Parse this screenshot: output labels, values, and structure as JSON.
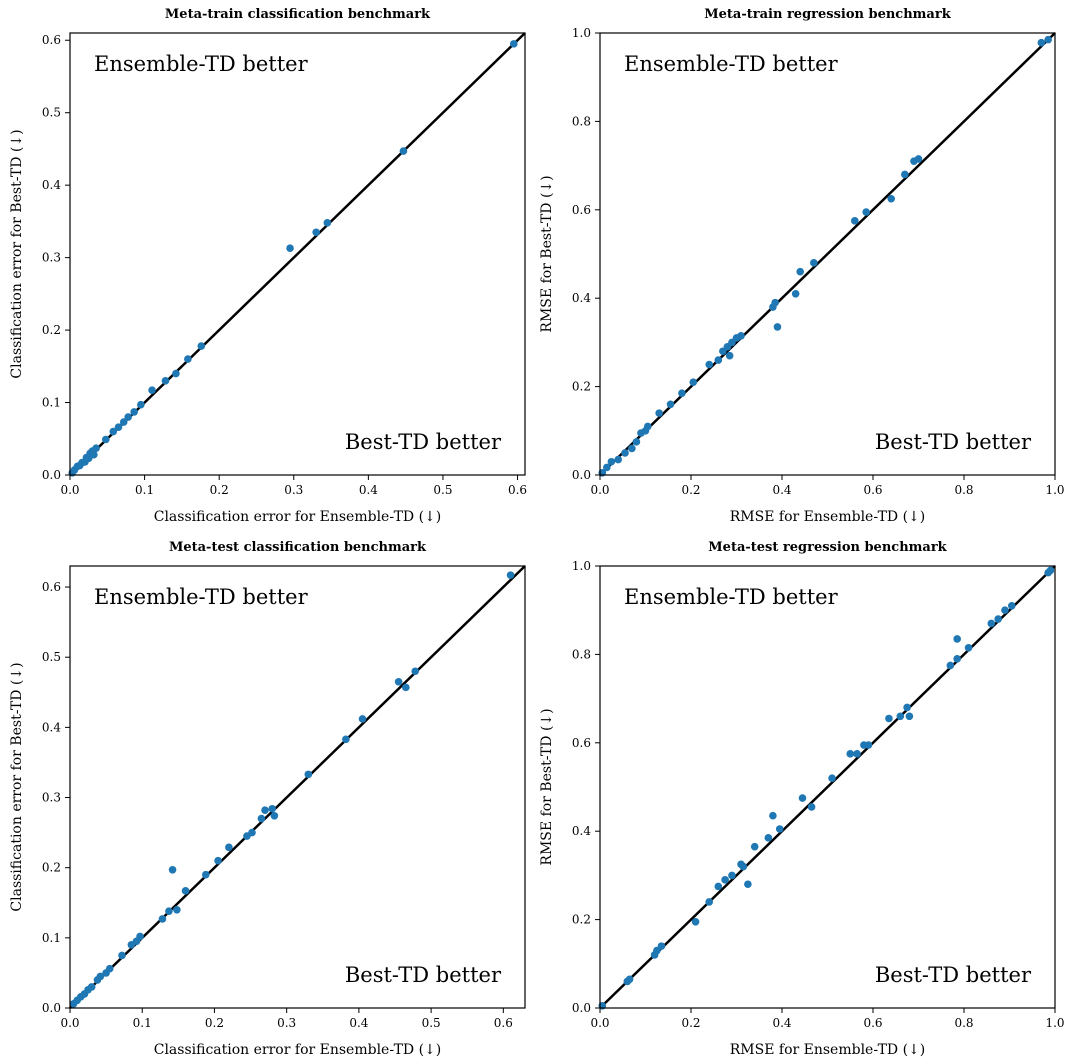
{
  "chart_data": [
    {
      "type": "scatter",
      "title": "Meta-train classification benchmark",
      "xlabel": "Classification error for Ensemble-TD (↓)",
      "ylabel": "Classification error for Best-TD (↓)",
      "xlim": [
        0,
        0.61
      ],
      "ylim": [
        0,
        0.61
      ],
      "xticks": [
        "0.0",
        "0.1",
        "0.2",
        "0.3",
        "0.4",
        "0.5",
        "0.6"
      ],
      "yticks": [
        "0.0",
        "0.1",
        "0.2",
        "0.3",
        "0.4",
        "0.5",
        "0.6"
      ],
      "xtick_values": [
        0,
        0.1,
        0.2,
        0.3,
        0.4,
        0.5,
        0.6
      ],
      "ytick_values": [
        0,
        0.1,
        0.2,
        0.3,
        0.4,
        0.5,
        0.6
      ],
      "annotations": [
        "Ensemble-TD better",
        "Best-TD better"
      ],
      "marker_color": "#1f77b4",
      "line_color": "#000000",
      "points": [
        [
          0.003,
          0.003
        ],
        [
          0.006,
          0.007
        ],
        [
          0.01,
          0.012
        ],
        [
          0.013,
          0.013
        ],
        [
          0.016,
          0.017
        ],
        [
          0.02,
          0.018
        ],
        [
          0.022,
          0.024
        ],
        [
          0.025,
          0.023
        ],
        [
          0.027,
          0.03
        ],
        [
          0.03,
          0.033
        ],
        [
          0.032,
          0.028
        ],
        [
          0.035,
          0.037
        ],
        [
          0.048,
          0.049
        ],
        [
          0.058,
          0.06
        ],
        [
          0.065,
          0.066
        ],
        [
          0.072,
          0.073
        ],
        [
          0.078,
          0.08
        ],
        [
          0.086,
          0.087
        ],
        [
          0.095,
          0.097
        ],
        [
          0.11,
          0.117
        ],
        [
          0.128,
          0.13
        ],
        [
          0.142,
          0.14
        ],
        [
          0.158,
          0.16
        ],
        [
          0.176,
          0.178
        ],
        [
          0.295,
          0.313
        ],
        [
          0.33,
          0.335
        ],
        [
          0.345,
          0.348
        ],
        [
          0.447,
          0.447
        ],
        [
          0.595,
          0.595
        ]
      ]
    },
    {
      "type": "scatter",
      "title": "Meta-train regression benchmark",
      "xlabel": "RMSE for Ensemble-TD (↓)",
      "ylabel": "RMSE for Best-TD (↓)",
      "xlim": [
        0,
        1.0
      ],
      "ylim": [
        0,
        1.0
      ],
      "xticks": [
        "0.0",
        "0.2",
        "0.4",
        "0.6",
        "0.8",
        "1.0"
      ],
      "yticks": [
        "0.0",
        "0.2",
        "0.4",
        "0.6",
        "0.8",
        "1.0"
      ],
      "xtick_values": [
        0,
        0.2,
        0.4,
        0.6,
        0.8,
        1.0
      ],
      "ytick_values": [
        0,
        0.2,
        0.4,
        0.6,
        0.8,
        1.0
      ],
      "annotations": [
        "Ensemble-TD better",
        "Best-TD better"
      ],
      "marker_color": "#1f77b4",
      "line_color": "#000000",
      "points": [
        [
          0.005,
          0.005
        ],
        [
          0.015,
          0.017
        ],
        [
          0.025,
          0.03
        ],
        [
          0.04,
          0.035
        ],
        [
          0.055,
          0.05
        ],
        [
          0.07,
          0.06
        ],
        [
          0.08,
          0.075
        ],
        [
          0.09,
          0.095
        ],
        [
          0.1,
          0.1
        ],
        [
          0.105,
          0.11
        ],
        [
          0.13,
          0.14
        ],
        [
          0.155,
          0.16
        ],
        [
          0.18,
          0.185
        ],
        [
          0.205,
          0.21
        ],
        [
          0.24,
          0.25
        ],
        [
          0.26,
          0.26
        ],
        [
          0.27,
          0.28
        ],
        [
          0.28,
          0.29
        ],
        [
          0.285,
          0.27
        ],
        [
          0.29,
          0.3
        ],
        [
          0.3,
          0.31
        ],
        [
          0.31,
          0.315
        ],
        [
          0.38,
          0.38
        ],
        [
          0.385,
          0.39
        ],
        [
          0.39,
          0.335
        ],
        [
          0.43,
          0.41
        ],
        [
          0.44,
          0.46
        ],
        [
          0.47,
          0.48
        ],
        [
          0.56,
          0.575
        ],
        [
          0.585,
          0.595
        ],
        [
          0.64,
          0.625
        ],
        [
          0.67,
          0.68
        ],
        [
          0.69,
          0.71
        ],
        [
          0.7,
          0.715
        ],
        [
          0.97,
          0.978
        ],
        [
          0.985,
          0.985
        ]
      ]
    },
    {
      "type": "scatter",
      "title": "Meta-test classification benchmark",
      "xlabel": "Classification error for Ensemble-TD (↓)",
      "ylabel": "Classification error for Best-TD (↓)",
      "xlim": [
        0,
        0.63
      ],
      "ylim": [
        0,
        0.63
      ],
      "xticks": [
        "0.0",
        "0.1",
        "0.2",
        "0.3",
        "0.4",
        "0.5",
        "0.6"
      ],
      "yticks": [
        "0.0",
        "0.1",
        "0.2",
        "0.3",
        "0.4",
        "0.5",
        "0.6"
      ],
      "xtick_values": [
        0,
        0.1,
        0.2,
        0.3,
        0.4,
        0.5,
        0.6
      ],
      "ytick_values": [
        0,
        0.1,
        0.2,
        0.3,
        0.4,
        0.5,
        0.6
      ],
      "annotations": [
        "Ensemble-TD better",
        "Best-TD better"
      ],
      "marker_color": "#1f77b4",
      "line_color": "#000000",
      "points": [
        [
          0.005,
          0.006
        ],
        [
          0.01,
          0.011
        ],
        [
          0.015,
          0.016
        ],
        [
          0.02,
          0.02
        ],
        [
          0.025,
          0.026
        ],
        [
          0.03,
          0.03
        ],
        [
          0.038,
          0.04
        ],
        [
          0.042,
          0.045
        ],
        [
          0.05,
          0.05
        ],
        [
          0.055,
          0.056
        ],
        [
          0.072,
          0.075
        ],
        [
          0.085,
          0.09
        ],
        [
          0.092,
          0.095
        ],
        [
          0.097,
          0.102
        ],
        [
          0.128,
          0.127
        ],
        [
          0.137,
          0.138
        ],
        [
          0.142,
          0.197
        ],
        [
          0.148,
          0.14
        ],
        [
          0.16,
          0.167
        ],
        [
          0.188,
          0.19
        ],
        [
          0.205,
          0.21
        ],
        [
          0.22,
          0.229
        ],
        [
          0.245,
          0.245
        ],
        [
          0.252,
          0.25
        ],
        [
          0.265,
          0.27
        ],
        [
          0.27,
          0.282
        ],
        [
          0.28,
          0.284
        ],
        [
          0.283,
          0.274
        ],
        [
          0.33,
          0.333
        ],
        [
          0.382,
          0.383
        ],
        [
          0.405,
          0.412
        ],
        [
          0.455,
          0.465
        ],
        [
          0.465,
          0.457
        ],
        [
          0.478,
          0.48
        ],
        [
          0.61,
          0.617
        ]
      ]
    },
    {
      "type": "scatter",
      "title": "Meta-test regression benchmark",
      "xlabel": "RMSE for Ensemble-TD (↓)",
      "ylabel": "RMSE for Best-TD (↓)",
      "xlim": [
        0,
        1.0
      ],
      "ylim": [
        0,
        1.0
      ],
      "xticks": [
        "0.0",
        "0.2",
        "0.4",
        "0.6",
        "0.8",
        "1.0"
      ],
      "yticks": [
        "0.0",
        "0.2",
        "0.4",
        "0.6",
        "0.8",
        "1.0"
      ],
      "xtick_values": [
        0,
        0.2,
        0.4,
        0.6,
        0.8,
        1.0
      ],
      "ytick_values": [
        0,
        0.2,
        0.4,
        0.6,
        0.8,
        1.0
      ],
      "annotations": [
        "Ensemble-TD better",
        "Best-TD better"
      ],
      "marker_color": "#1f77b4",
      "line_color": "#000000",
      "points": [
        [
          0.005,
          0.005
        ],
        [
          0.06,
          0.06
        ],
        [
          0.065,
          0.065
        ],
        [
          0.12,
          0.12
        ],
        [
          0.125,
          0.13
        ],
        [
          0.135,
          0.14
        ],
        [
          0.21,
          0.195
        ],
        [
          0.24,
          0.24
        ],
        [
          0.26,
          0.275
        ],
        [
          0.275,
          0.29
        ],
        [
          0.29,
          0.3
        ],
        [
          0.31,
          0.325
        ],
        [
          0.315,
          0.32
        ],
        [
          0.325,
          0.28
        ],
        [
          0.34,
          0.365
        ],
        [
          0.37,
          0.385
        ],
        [
          0.38,
          0.435
        ],
        [
          0.395,
          0.405
        ],
        [
          0.445,
          0.475
        ],
        [
          0.465,
          0.455
        ],
        [
          0.51,
          0.52
        ],
        [
          0.55,
          0.575
        ],
        [
          0.565,
          0.575
        ],
        [
          0.58,
          0.595
        ],
        [
          0.59,
          0.595
        ],
        [
          0.635,
          0.655
        ],
        [
          0.66,
          0.66
        ],
        [
          0.675,
          0.68
        ],
        [
          0.68,
          0.66
        ],
        [
          0.77,
          0.775
        ],
        [
          0.785,
          0.79
        ],
        [
          0.785,
          0.835
        ],
        [
          0.81,
          0.815
        ],
        [
          0.86,
          0.87
        ],
        [
          0.875,
          0.88
        ],
        [
          0.89,
          0.9
        ],
        [
          0.905,
          0.91
        ],
        [
          0.985,
          0.985
        ],
        [
          0.99,
          0.99
        ]
      ]
    }
  ]
}
